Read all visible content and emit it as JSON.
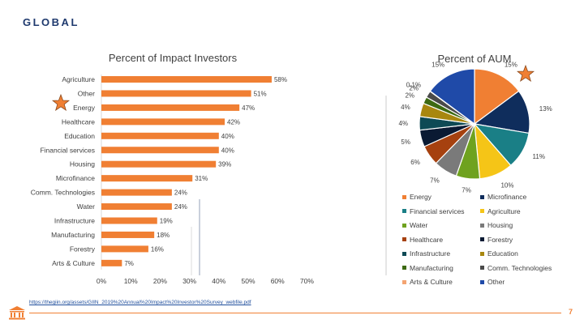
{
  "slide": {
    "heading": "GLOBAL",
    "page_number": "7",
    "source_link": "https://thegiin.org/assets/GIIN_2019%20Annual%20Impact%20Investor%20Survey_webfile.pdf",
    "accent": "#f07f33",
    "heading_color": "#1f3a6e"
  },
  "icons": {
    "star": "star-icon",
    "logo": "university-logo-icon"
  },
  "chart_data": [
    {
      "type": "bar",
      "orientation": "horizontal",
      "title": "Percent of Impact Investors",
      "categories": [
        "Agriculture",
        "Other",
        "Energy",
        "Healthcare",
        "Education",
        "Financial services",
        "Housing",
        "Microfinance",
        "Comm. Technologies",
        "Water",
        "Infrastructure",
        "Manufacturing",
        "Forestry",
        "Arts & Culture"
      ],
      "values": [
        58,
        51,
        47,
        42,
        40,
        40,
        39,
        31,
        24,
        24,
        19,
        18,
        16,
        7
      ],
      "value_labels": [
        "58%",
        "51%",
        "47%",
        "42%",
        "40%",
        "40%",
        "39%",
        "31%",
        "24%",
        "24%",
        "19%",
        "18%",
        "16%",
        "7%"
      ],
      "xlim": [
        0,
        70
      ],
      "xticks": [
        "0%",
        "10%",
        "20%",
        "30%",
        "40%",
        "50%",
        "60%",
        "70%"
      ],
      "color": "#f07f33"
    },
    {
      "type": "pie",
      "title": "Percent of AUM",
      "series": [
        {
          "name": "Energy",
          "value": 15,
          "label": "15%",
          "color": "#f07f33"
        },
        {
          "name": "Microfinance",
          "value": 13,
          "label": "13%",
          "color": "#0f2d5c"
        },
        {
          "name": "Financial services",
          "value": 11,
          "label": "11%",
          "color": "#1a7f86"
        },
        {
          "name": "Agriculture",
          "value": 10,
          "label": "10%",
          "color": "#f5c517"
        },
        {
          "name": "Water",
          "value": 7,
          "label": "7%",
          "color": "#6fa21f"
        },
        {
          "name": "Housing",
          "value": 7,
          "label": "7%",
          "color": "#7a7a7a"
        },
        {
          "name": "Healthcare",
          "value": 6,
          "label": "6%",
          "color": "#a6410f"
        },
        {
          "name": "Forestry",
          "value": 5,
          "label": "5%",
          "color": "#0a1a33"
        },
        {
          "name": "Infrastructure",
          "value": 4,
          "label": "4%",
          "color": "#0e4a55"
        },
        {
          "name": "Education",
          "value": 4,
          "label": "4%",
          "color": "#a8870f"
        },
        {
          "name": "Manufacturing",
          "value": 2,
          "label": "2%",
          "color": "#3d6a12"
        },
        {
          "name": "Comm. Technologies",
          "value": 2,
          "label": "2%",
          "color": "#4a4a4a"
        },
        {
          "name": "Arts & Culture",
          "value": 0.1,
          "label": "0.1%",
          "color": "#f4a472"
        },
        {
          "name": "Other",
          "value": 15,
          "label": "15%",
          "color": "#1f4aa8"
        }
      ]
    }
  ]
}
